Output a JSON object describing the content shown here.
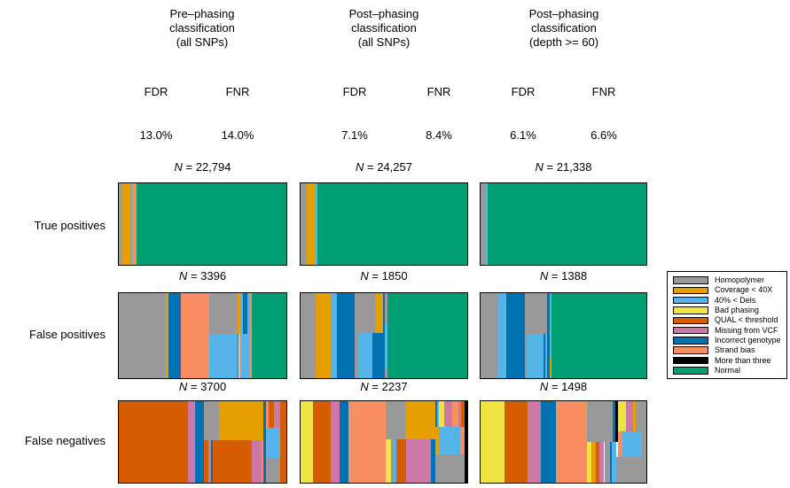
{
  "figure": {
    "columns": [
      {
        "title": "Pre–phasing\nclassification\n(all SNPs)",
        "fdr_label": "FDR",
        "fnr_label": "FNR",
        "fdr": "13.0%",
        "fnr": "14.0%"
      },
      {
        "title": "Post–phasing\nclassification\n(all SNPs)",
        "fdr_label": "FDR",
        "fnr_label": "FNR",
        "fdr": "7.1%",
        "fnr": "8.4%"
      },
      {
        "title": "Post–phasing\nclassification\n(depth >= 60)",
        "fdr_label": "FDR",
        "fnr_label": "FNR",
        "fdr": "6.1%",
        "fnr": "6.6%"
      }
    ],
    "rows": [
      {
        "label": "True positives"
      },
      {
        "label": "False positives"
      },
      {
        "label": "False negatives"
      }
    ]
  },
  "chart_data": {
    "type": "mosaic",
    "description": "Composition of SNP calls (proportion of bar area per error category) for three classifications (pre-phasing all SNPs, post-phasing all SNPs, post-phasing depth >= 60) across true positives, false positives and false negatives. Rect format: [x%, y%, width%, height%, colorKey] within each bar.",
    "colors": {
      "gray": "#999999",
      "gold": "#E69F00",
      "lightblue": "#56B4E9",
      "yellow": "#F0E442",
      "darkorange": "#D55E00",
      "pink": "#CC79A7",
      "darkblue": "#0072B2",
      "salmon": "#F98E62",
      "black": "#000000",
      "green": "#009E73"
    },
    "legend": [
      {
        "key": "gray",
        "label": "Homopolymer"
      },
      {
        "key": "gold",
        "label": "Coverage < 40X"
      },
      {
        "key": "lightblue",
        "label": "40% < Dels"
      },
      {
        "key": "yellow",
        "label": "Bad phasing"
      },
      {
        "key": "darkorange",
        "label": "QUAL < threshold"
      },
      {
        "key": "pink",
        "label": "Missing from VCF"
      },
      {
        "key": "darkblue",
        "label": "Incorrect genotype"
      },
      {
        "key": "salmon",
        "label": "Strand bias"
      },
      {
        "key": "black",
        "label": "More than three"
      },
      {
        "key": "green",
        "label": "Normal"
      }
    ],
    "cells": [
      {
        "row": 0,
        "col": 0,
        "n": "N = 22,794",
        "rects": [
          [
            0,
            0,
            1.6,
            100,
            "gray"
          ],
          [
            1.6,
            0,
            5.2,
            100,
            "gold"
          ],
          [
            6.8,
            0,
            1.2,
            100,
            "lightblue"
          ],
          [
            8.0,
            0,
            2.5,
            100,
            "salmon"
          ],
          [
            10.5,
            0,
            89.5,
            100,
            "green"
          ]
        ]
      },
      {
        "row": 0,
        "col": 1,
        "n": "N = 24,257",
        "rects": [
          [
            0,
            0,
            3.7,
            100,
            "gray"
          ],
          [
            3.7,
            0,
            5.3,
            100,
            "gold"
          ],
          [
            9.0,
            0,
            1.1,
            100,
            "lightblue"
          ],
          [
            10.1,
            0,
            89.9,
            100,
            "green"
          ]
        ]
      },
      {
        "row": 0,
        "col": 2,
        "n": "N = 21,338",
        "rects": [
          [
            0,
            0,
            3.2,
            100,
            "gray"
          ],
          [
            3.2,
            0,
            1.1,
            100,
            "lightblue"
          ],
          [
            4.3,
            0,
            95.7,
            100,
            "green"
          ]
        ]
      },
      {
        "row": 1,
        "col": 0,
        "n": "N = 3396",
        "rects": [
          [
            0,
            0,
            28.3,
            100,
            "gray"
          ],
          [
            28.3,
            0,
            1.5,
            100,
            "gold"
          ],
          [
            29.8,
            0,
            7.4,
            100,
            "darkblue"
          ],
          [
            37.2,
            0,
            16.7,
            100,
            "salmon"
          ],
          [
            53.9,
            0,
            16.8,
            48,
            "gray"
          ],
          [
            53.9,
            48,
            16.8,
            52,
            "lightblue"
          ],
          [
            70.7,
            0,
            2.3,
            48,
            "gold"
          ],
          [
            70.7,
            48,
            1.0,
            52,
            "darkblue"
          ],
          [
            71.7,
            48,
            1.5,
            52,
            "salmon"
          ],
          [
            73.2,
            48,
            5.3,
            52,
            "lightblue"
          ],
          [
            73.0,
            0,
            1.0,
            48,
            "lightblue"
          ],
          [
            74.0,
            0,
            2.5,
            48,
            "darkblue"
          ],
          [
            76.5,
            0,
            2.0,
            48,
            "lightblue"
          ],
          [
            78.5,
            0,
            1.1,
            100,
            "salmon"
          ],
          [
            79.6,
            0,
            20.4,
            100,
            "green"
          ]
        ]
      },
      {
        "row": 1,
        "col": 1,
        "n": "N = 1850",
        "rects": [
          [
            0,
            0,
            9.0,
            100,
            "gray"
          ],
          [
            9.0,
            0,
            8.9,
            100,
            "gold"
          ],
          [
            17.9,
            0,
            3.7,
            100,
            "lightblue"
          ],
          [
            21.6,
            0,
            11.0,
            100,
            "darkblue"
          ],
          [
            32.6,
            0,
            12.1,
            47,
            "gray"
          ],
          [
            32.6,
            47,
            1.6,
            53,
            "gray"
          ],
          [
            34.2,
            47,
            9.0,
            53,
            "lightblue"
          ],
          [
            43.2,
            47,
            6.3,
            53,
            "darkblue"
          ],
          [
            44.7,
            0,
            4.8,
            47,
            "gold"
          ],
          [
            49.5,
            0,
            1.2,
            100,
            "darkblue"
          ],
          [
            50.7,
            0,
            1.6,
            35,
            "gray"
          ],
          [
            50.7,
            35,
            1.6,
            55,
            "lightblue"
          ],
          [
            50.7,
            90,
            1.6,
            10,
            "gray"
          ],
          [
            52.3,
            0,
            47.7,
            100,
            "green"
          ]
        ]
      },
      {
        "row": 1,
        "col": 2,
        "n": "N = 1388",
        "rects": [
          [
            0,
            0,
            10.1,
            100,
            "gray"
          ],
          [
            10.1,
            0,
            5.2,
            100,
            "lightblue"
          ],
          [
            15.3,
            0,
            11.7,
            100,
            "darkblue"
          ],
          [
            27.0,
            0,
            13.2,
            48,
            "gray"
          ],
          [
            27.0,
            48,
            1.0,
            52,
            "gray"
          ],
          [
            28.0,
            48,
            10.2,
            52,
            "lightblue"
          ],
          [
            38.2,
            48,
            1.0,
            52,
            "darkblue"
          ],
          [
            39.2,
            48,
            1.0,
            52,
            "lightblue"
          ],
          [
            40.2,
            0,
            1.6,
            100,
            "darkblue"
          ],
          [
            41.8,
            0,
            1.0,
            75,
            "lightblue"
          ],
          [
            41.8,
            75,
            1.0,
            25,
            "gold"
          ],
          [
            42.8,
            0,
            57.2,
            100,
            "green"
          ]
        ]
      },
      {
        "row": 2,
        "col": 0,
        "n": "N = 3700",
        "rects": [
          [
            0,
            0,
            41.4,
            100,
            "darkorange"
          ],
          [
            41.4,
            0,
            4.1,
            100,
            "pink"
          ],
          [
            45.5,
            0,
            5.3,
            100,
            "darkblue"
          ],
          [
            50.8,
            0,
            8.9,
            48,
            "gray"
          ],
          [
            50.8,
            48,
            2.6,
            52,
            "darkorange"
          ],
          [
            53.4,
            48,
            1.6,
            52,
            "pink"
          ],
          [
            55.0,
            48,
            1.0,
            52,
            "darkblue"
          ],
          [
            59.7,
            0,
            26.7,
            48,
            "gold"
          ],
          [
            56.0,
            48,
            23.6,
            52,
            "darkorange"
          ],
          [
            79.6,
            48,
            5.7,
            52,
            "pink"
          ],
          [
            85.3,
            48,
            1.1,
            52,
            "salmon"
          ],
          [
            86.4,
            0,
            1.6,
            100,
            "darkblue"
          ],
          [
            88.0,
            0,
            1.5,
            33,
            "salmon"
          ],
          [
            89.5,
            0,
            3.2,
            33,
            "darkorange"
          ],
          [
            92.7,
            0,
            3.6,
            33,
            "pink"
          ],
          [
            88.0,
            33,
            8.3,
            37,
            "lightblue"
          ],
          [
            88.0,
            70,
            8.3,
            30,
            "gray"
          ],
          [
            96.3,
            0,
            3.7,
            100,
            "darkorange"
          ]
        ]
      },
      {
        "row": 2,
        "col": 1,
        "n": "N = 2237",
        "rects": [
          [
            0,
            0,
            7.4,
            100,
            "yellow"
          ],
          [
            7.4,
            0,
            10.5,
            100,
            "darkorange"
          ],
          [
            17.9,
            0,
            5.3,
            100,
            "pink"
          ],
          [
            23.2,
            0,
            5.7,
            100,
            "darkblue"
          ],
          [
            28.9,
            0,
            22.2,
            100,
            "salmon"
          ],
          [
            51.1,
            0,
            11.5,
            47,
            "gray"
          ],
          [
            51.1,
            47,
            3.1,
            53,
            "yellow"
          ],
          [
            54.2,
            47,
            1.6,
            53,
            "gray"
          ],
          [
            55.8,
            47,
            1.6,
            53,
            "lightblue"
          ],
          [
            57.4,
            47,
            5.8,
            53,
            "darkorange"
          ],
          [
            62.6,
            0,
            18.5,
            47,
            "gold"
          ],
          [
            63.2,
            47,
            15.2,
            53,
            "pink"
          ],
          [
            78.4,
            47,
            3.2,
            53,
            "darkblue"
          ],
          [
            81.1,
            0,
            1.0,
            32,
            "darkblue"
          ],
          [
            82.1,
            0,
            1.1,
            32,
            "lightblue"
          ],
          [
            83.2,
            0,
            3.1,
            32,
            "yellow"
          ],
          [
            86.3,
            0,
            4.8,
            32,
            "pink"
          ],
          [
            91.1,
            0,
            3.6,
            32,
            "salmon"
          ],
          [
            94.7,
            0,
            1.6,
            32,
            "pink"
          ],
          [
            96.3,
            0,
            2.1,
            32,
            "darkorange"
          ],
          [
            81.1,
            32,
            2.1,
            33,
            "gold"
          ],
          [
            83.2,
            32,
            12.6,
            33,
            "lightblue"
          ],
          [
            95.8,
            32,
            2.6,
            33,
            "salmon"
          ],
          [
            81.1,
            65,
            17.3,
            35,
            "gray"
          ],
          [
            98.4,
            0,
            1.6,
            100,
            "black"
          ]
        ]
      },
      {
        "row": 2,
        "col": 2,
        "n": "N = 1498",
        "rects": [
          [
            0,
            0,
            14.3,
            100,
            "yellow"
          ],
          [
            14.3,
            0,
            14.3,
            100,
            "darkorange"
          ],
          [
            28.6,
            0,
            7.9,
            100,
            "pink"
          ],
          [
            36.5,
            0,
            9.0,
            100,
            "darkblue"
          ],
          [
            45.5,
            0,
            18.5,
            100,
            "salmon"
          ],
          [
            64.0,
            0,
            15.9,
            50,
            "gray"
          ],
          [
            64.0,
            50,
            2.7,
            50,
            "yellow"
          ],
          [
            66.7,
            50,
            2.6,
            50,
            "gold"
          ],
          [
            69.3,
            50,
            2.6,
            50,
            "darkorange"
          ],
          [
            71.9,
            50,
            2.7,
            50,
            "pink"
          ],
          [
            74.6,
            50,
            3.7,
            50,
            "gray"
          ],
          [
            78.3,
            50,
            1.1,
            50,
            "darkblue"
          ],
          [
            79.4,
            50,
            2.6,
            50,
            "lightblue"
          ],
          [
            79.9,
            0,
            1.6,
            50,
            "darkblue"
          ],
          [
            81.5,
            0,
            1.6,
            50,
            "black"
          ],
          [
            83.1,
            0,
            4.7,
            37,
            "yellow"
          ],
          [
            87.8,
            0,
            4.2,
            37,
            "pink"
          ],
          [
            92.0,
            0,
            1.7,
            37,
            "gold"
          ],
          [
            93.7,
            0,
            6.3,
            37,
            "gray"
          ],
          [
            83.1,
            37,
            2.6,
            32,
            "salmon"
          ],
          [
            85.7,
            37,
            11.7,
            32,
            "lightblue"
          ],
          [
            97.4,
            37,
            2.6,
            32,
            "gray"
          ],
          [
            82.0,
            69,
            18.0,
            31,
            "gray"
          ]
        ]
      }
    ]
  }
}
